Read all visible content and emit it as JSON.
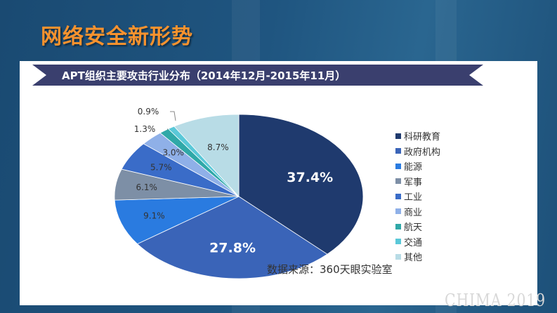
{
  "slide": {
    "title": "网络安全新形势",
    "watermark": "CHIMA 2019"
  },
  "chart_data": {
    "type": "pie",
    "title": "APT组织主要攻击行业分布（2014年12月-2015年11月）",
    "source": "数据来源：360天眼实验室",
    "legend_position": "right",
    "start": "12 o'clock, clockwise",
    "categories": [
      "科研教育",
      "政府机构",
      "能源",
      "军事",
      "工业",
      "商业",
      "航天",
      "交通",
      "其他"
    ],
    "values": [
      37.4,
      27.8,
      9.1,
      6.1,
      5.7,
      3.0,
      1.3,
      0.9,
      8.7
    ],
    "labels": [
      "37.4%",
      "27.8%",
      "9.1%",
      "6.1%",
      "5.7%",
      "3.0%",
      "1.3%",
      "0.9%",
      "8.7%"
    ],
    "colors": [
      "#1f3a6e",
      "#3a64b8",
      "#2a7be0",
      "#7d8fa6",
      "#3a6cc8",
      "#8fb0e8",
      "#2fa8a8",
      "#5ac8d8",
      "#b8dce6"
    ]
  }
}
